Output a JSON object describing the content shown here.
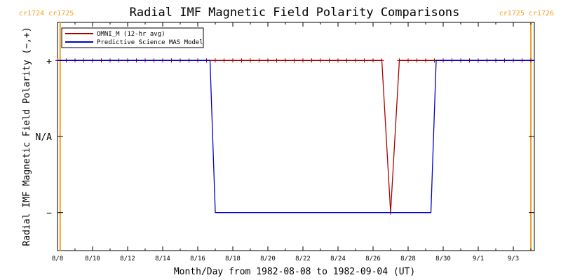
{
  "chart_data": {
    "type": "line",
    "title": "Radial IMF Magnetic Field Polarity Comparisons",
    "xlabel": "Month/Day from 1982-08-08 to 1982-09-04 (UT)",
    "ylabel": "Radial IMF Magnetic Field Polarity (−,+)",
    "xlim_days": [
      0,
      27.2
    ],
    "ylim": [
      -1.5,
      1.5
    ],
    "ytick_values": [
      1,
      0,
      -1
    ],
    "ytick_labels": [
      "+",
      "N/A",
      "−"
    ],
    "xticks": [
      {
        "day": 0,
        "label": "8/8"
      },
      {
        "day": 2,
        "label": "8/10"
      },
      {
        "day": 4,
        "label": "8/12"
      },
      {
        "day": 6,
        "label": "8/14"
      },
      {
        "day": 8,
        "label": "8/16"
      },
      {
        "day": 10,
        "label": "8/18"
      },
      {
        "day": 12,
        "label": "8/20"
      },
      {
        "day": 14,
        "label": "8/22"
      },
      {
        "day": 16,
        "label": "8/24"
      },
      {
        "day": 18,
        "label": "8/26"
      },
      {
        "day": 20,
        "label": "8/28"
      },
      {
        "day": 22,
        "label": "8/30"
      },
      {
        "day": 24,
        "label": "9/1"
      },
      {
        "day": 26,
        "label": "9/3"
      }
    ],
    "carrington_rotations": [
      {
        "day": 0.15,
        "label_left": "cr1724",
        "label_right": "cr1725",
        "align": "left"
      },
      {
        "day": 27.0,
        "label_left": "cr1725",
        "label_right": "cr1726",
        "align": "right"
      }
    ],
    "legend_position": "top-left",
    "series": [
      {
        "name": "OMNI_M (12-hr avg)",
        "color": "#aa0000",
        "markers": true,
        "x": [
          0,
          0.5,
          1,
          1.5,
          2,
          2.5,
          3,
          3.5,
          4,
          4.5,
          5,
          5.5,
          6,
          6.5,
          7,
          7.5,
          8,
          8.5,
          9,
          9.5,
          10,
          10.5,
          11,
          11.5,
          12,
          12.5,
          13,
          13.5,
          14,
          14.5,
          15,
          15.5,
          16,
          16.5,
          17,
          17.5,
          18,
          18.5,
          19,
          19.5,
          20,
          20.5,
          21,
          21.5,
          22,
          22.5,
          23,
          23.5,
          24,
          24.5,
          25,
          25.5,
          26,
          26.5,
          27
        ],
        "y": [
          1,
          1,
          1,
          1,
          1,
          1,
          1,
          1,
          1,
          1,
          1,
          1,
          1,
          1,
          1,
          1,
          1,
          1,
          1,
          1,
          1,
          1,
          1,
          1,
          1,
          1,
          1,
          1,
          1,
          1,
          1,
          1,
          1,
          1,
          1,
          1,
          1,
          1,
          -1,
          1,
          1,
          1,
          1,
          1,
          1,
          1,
          1,
          1,
          1,
          1,
          1,
          1,
          1,
          1,
          1
        ]
      },
      {
        "name": "Predictive Science MAS Model",
        "color": "#0000cc",
        "markers": false,
        "x": [
          0,
          8.7,
          9.0,
          21.3,
          21.6,
          27.2
        ],
        "y": [
          1,
          1,
          -1,
          -1,
          1,
          1
        ]
      }
    ]
  }
}
